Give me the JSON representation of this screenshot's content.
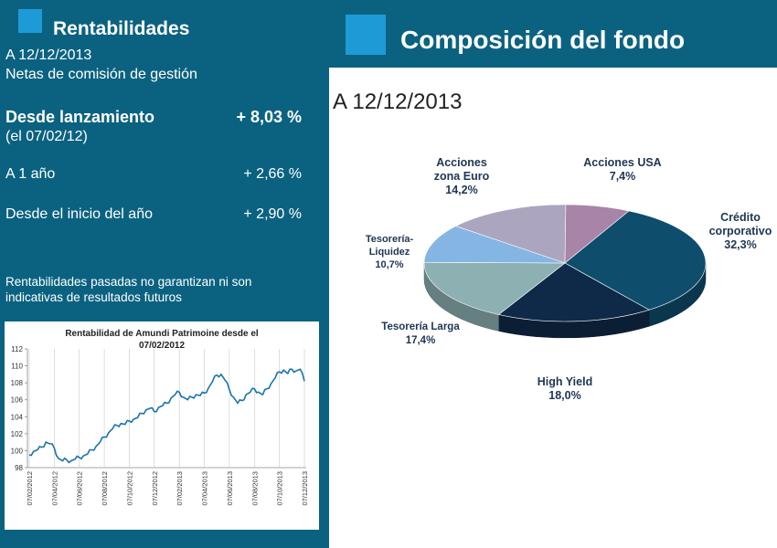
{
  "left": {
    "title": "Rentabilidades",
    "date": "A 12/12/2013",
    "subtitle": "Netas de comisión de gestión",
    "rows": [
      {
        "label": "Desde lanzamiento",
        "value": "+ 8,03 %"
      },
      {
        "label": "(el 07/02/12)"
      },
      {
        "label": "A 1 año",
        "value": "+ 2,66 %"
      },
      {
        "label": "Desde el inicio del año",
        "value": "+ 2,90 %"
      }
    ],
    "disclaimer": "Rentabilidades pasadas no garantizan ni son indicativas de resultados futuros"
  },
  "right": {
    "title": "Composición del fondo",
    "date": "A 12/12/2013"
  },
  "colors": {
    "panel": "#0b6280",
    "accent_square": "#1e9bd7",
    "line_series": "#1a74a8"
  },
  "chart_data": [
    {
      "type": "line",
      "title": "Rentabilidad de Amundi Patrimoine desde el 07/02/2012",
      "ylim": [
        98,
        112
      ],
      "yticks": [
        98,
        100,
        102,
        104,
        106,
        108,
        110,
        112
      ],
      "xticks": [
        "07/02/2012",
        "07/04/2012",
        "07/06/2012",
        "07/08/2012",
        "07/10/2012",
        "07/12/2012",
        "07/02/2013",
        "07/04/2013",
        "07/06/2013",
        "07/08/2013",
        "07/10/2013",
        "07/12/2013"
      ],
      "grid": "vertical",
      "series": [
        {
          "values": [
            99.5,
            99.9,
            100.1,
            100.4,
            101.0,
            100.8,
            100.3,
            99.1,
            98.8,
            98.9,
            98.8,
            99.0,
            99.2,
            99.4,
            99.6,
            100.1,
            100.5,
            101.0,
            101.6,
            102.1,
            102.6,
            103.0,
            103.2,
            103.1,
            103.5,
            103.7,
            103.9,
            104.4,
            104.8,
            105.0,
            104.6,
            105.1,
            105.3,
            105.6,
            106.2,
            106.6,
            106.9,
            106.3,
            106.0,
            106.3,
            106.6,
            106.5,
            106.8,
            107.4,
            108.2,
            108.9,
            109.0,
            108.3,
            107.2,
            106.3,
            105.6,
            105.9,
            106.6,
            106.9,
            107.3,
            106.9,
            106.6,
            107.3,
            107.9,
            108.6,
            109.3,
            109.5,
            109.1,
            109.6,
            109.4,
            109.6,
            108.2
          ]
        }
      ]
    },
    {
      "type": "pie",
      "slices": [
        {
          "label": "Crédito corporativo",
          "value": 32.3,
          "text": "32,3%",
          "color": "#0e4d6c"
        },
        {
          "label": "High Yield",
          "value": 18.0,
          "text": "18,0%",
          "color": "#0f2a48"
        },
        {
          "label": "Tesorería Larga",
          "value": 17.4,
          "text": "17,4%",
          "color": "#8db0b2"
        },
        {
          "label": "Tesorería-Liquidez",
          "value": 10.7,
          "text": "10,7%",
          "color": "#85b6e3"
        },
        {
          "label": "Acciones zona Euro",
          "value": 14.2,
          "text": "14,2%",
          "color": "#aba5bf"
        },
        {
          "label": "Acciones USA",
          "value": 7.4,
          "text": "7,4%",
          "color": "#a884a8"
        }
      ]
    }
  ]
}
